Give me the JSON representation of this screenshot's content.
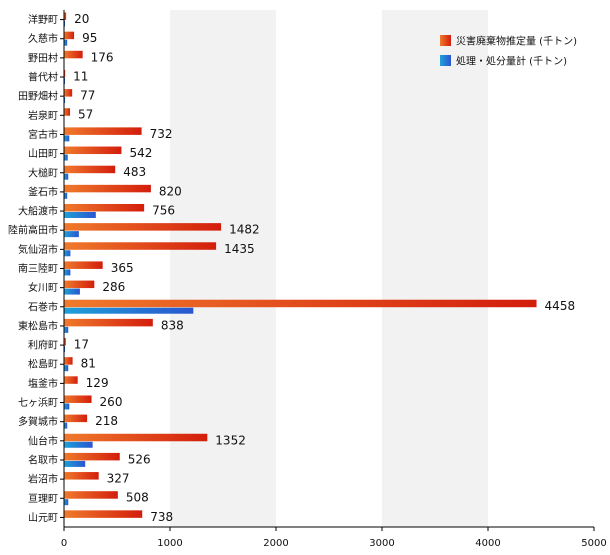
{
  "chart_data": {
    "type": "bar",
    "orientation": "horizontal",
    "categories": [
      "洋野町",
      "久慈市",
      "野田村",
      "普代村",
      "田野畑村",
      "岩泉町",
      "宮古市",
      "山田町",
      "大槌町",
      "釜石市",
      "大船渡市",
      "陸前高田市",
      "気仙沼市",
      "南三陸町",
      "女川町",
      "石巻市",
      "東松島市",
      "利府町",
      "松島町",
      "塩釜市",
      "七ヶ浜町",
      "多賀城市",
      "仙台市",
      "名取市",
      "岩沼市",
      "亘理町",
      "山元町"
    ],
    "series": [
      {
        "name": "災害廃棄物推定量 (千トン)",
        "color": "#e8541a",
        "values": [
          20,
          95,
          176,
          11,
          77,
          57,
          732,
          542,
          483,
          820,
          756,
          1482,
          1435,
          365,
          286,
          4458,
          838,
          17,
          81,
          129,
          260,
          218,
          1352,
          526,
          327,
          508,
          738
        ]
      },
      {
        "name": "処理・処分量計 (千トン)",
        "color": "#2a6ed8",
        "values": [
          5,
          30,
          0,
          3,
          10,
          0,
          50,
          35,
          40,
          30,
          300,
          140,
          60,
          60,
          150,
          1220,
          40,
          5,
          40,
          0,
          50,
          30,
          270,
          200,
          0,
          40,
          0
        ]
      }
    ],
    "xticks": [
      "0",
      "1000",
      "2000",
      "3000",
      "4000",
      "5000"
    ],
    "xlim": [
      0,
      5000
    ],
    "grid": "alternating vertical bands",
    "legend_position": "top-right"
  }
}
